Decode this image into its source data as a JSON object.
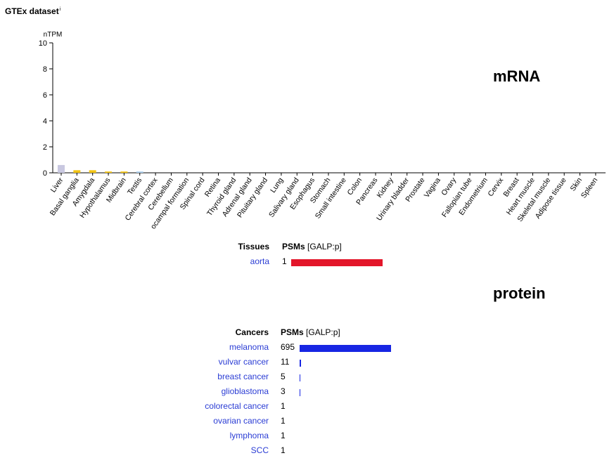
{
  "header": {
    "title": "GTEx dataset",
    "info_marker": "i"
  },
  "colors": {
    "tissue_bar": "#e3162a",
    "cancer_bar": "#1726e3",
    "link": "#2a3cd4",
    "liver": "#c9c8e0",
    "brain": "#f2c414",
    "testis": "#a9cdec"
  },
  "chart_data": {
    "type": "bar",
    "title": "mRNA",
    "ylabel": "nTPM",
    "ylim": [
      0,
      10
    ],
    "yticks": [
      "0",
      "2",
      "4",
      "6",
      "8",
      "10"
    ],
    "categories": [
      "Liver",
      "Basal ganglia",
      "Amygdala",
      "Hypothalamus",
      "Midbrain",
      "Testis",
      "Cerebral cortex",
      "Cerebellum",
      "ocampal formation",
      "Spinal cord",
      "Retina",
      "Thyroid gland",
      "Adrenal gland",
      "Pituitary gland",
      "Lung",
      "Salivary gland",
      "Esophagus",
      "Stomach",
      "Small intestine",
      "Colon",
      "Pancreas",
      "Kidney",
      "Urinary bladder",
      "Prostate",
      "Vagina",
      "Ovary",
      "Fallopian tube",
      "Endometrium",
      "Cervix",
      "Breast",
      "Heart muscle",
      "Skeletal muscle",
      "Adipose tissue",
      "Skin",
      "Spleen"
    ],
    "values": [
      0.6,
      0.2,
      0.2,
      0.1,
      0.1,
      0.1,
      0,
      0,
      0,
      0,
      0,
      0,
      0,
      0,
      0,
      0,
      0,
      0,
      0,
      0,
      0,
      0,
      0,
      0,
      0,
      0,
      0,
      0,
      0,
      0,
      0,
      0,
      0,
      0,
      0
    ],
    "bar_colors": [
      "#c9c8e0",
      "#f2c414",
      "#f2c414",
      "#f2c414",
      "#f2c414",
      "#a9cdec"
    ]
  },
  "protein_title": "protein",
  "tissues_table": {
    "col1": "Tissues",
    "col2": "PSMs",
    "col2_suffix": "[GALP:p]",
    "max": 1,
    "rows": [
      {
        "name": "aorta",
        "value": 1
      }
    ]
  },
  "cancers_table": {
    "col1": "Cancers",
    "col2": "PSMs",
    "col2_suffix": "[GALP:p]",
    "max": 695,
    "rows": [
      {
        "name": "melanoma",
        "value": 695
      },
      {
        "name": "vulvar cancer",
        "value": 11
      },
      {
        "name": "breast cancer",
        "value": 5
      },
      {
        "name": "glioblastoma",
        "value": 3
      },
      {
        "name": "colorectal cancer",
        "value": 1
      },
      {
        "name": "ovarian cancer",
        "value": 1
      },
      {
        "name": "lymphoma",
        "value": 1
      },
      {
        "name": "SCC",
        "value": 1
      }
    ]
  }
}
